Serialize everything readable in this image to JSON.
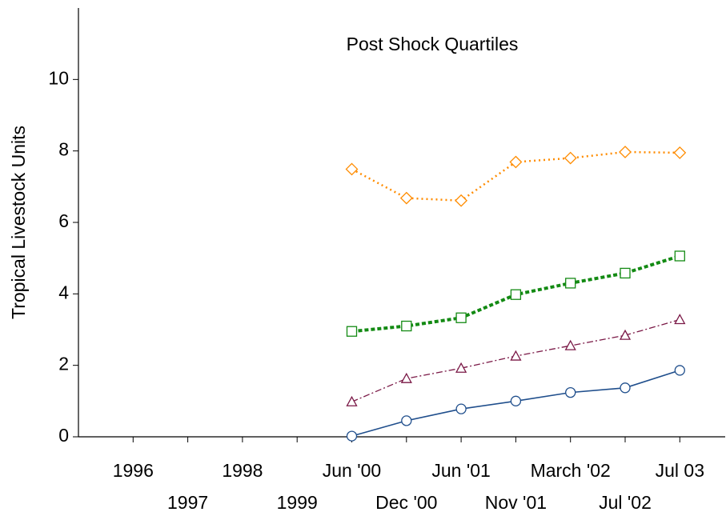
{
  "chart_data": {
    "type": "line",
    "title": "Post Shock Quartiles",
    "y_label": "Tropical Livestock Units",
    "categories": [
      "1996",
      "1997",
      "1998",
      "1999",
      "Jun '00",
      "Dec '00",
      "Jun '01",
      "Nov '01",
      "March '02",
      "Jul '02",
      "Jul 03"
    ],
    "series": [
      {
        "color": "#1f4e8c",
        "marker": "circle",
        "line_style": "solid",
        "values": [
          null,
          null,
          null,
          null,
          0.02,
          0.45,
          0.78,
          1.0,
          1.24,
          1.37,
          1.86
        ]
      },
      {
        "color": "#7a1846",
        "marker": "triangle",
        "line_style": "dashdot",
        "values": [
          null,
          null,
          null,
          null,
          0.98,
          1.63,
          1.92,
          2.26,
          2.55,
          2.84,
          3.28
        ]
      },
      {
        "color": "#138a13",
        "marker": "square",
        "line_style": "dashed",
        "values": [
          null,
          null,
          null,
          null,
          2.95,
          3.1,
          3.33,
          3.98,
          4.3,
          4.58,
          5.06
        ]
      },
      {
        "color": "#ff8c00",
        "marker": "diamond",
        "line_style": "dotted",
        "values": [
          null,
          null,
          null,
          null,
          7.49,
          6.68,
          6.61,
          7.69,
          7.8,
          7.97,
          7.95
        ]
      }
    ],
    "ylim": [
      0,
      12
    ],
    "yticks": [
      0,
      2,
      4,
      6,
      8,
      10
    ],
    "grid": false
  }
}
